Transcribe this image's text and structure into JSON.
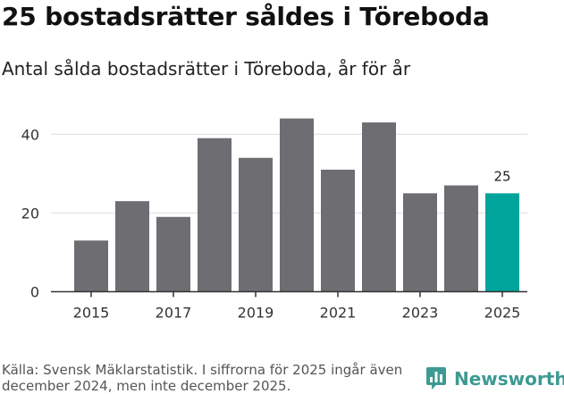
{
  "header": {
    "title": "25 bostadsrätter såldes i Töreboda",
    "subtitle": "Antal sålda bostadsrätter i Töreboda, år för år"
  },
  "footer": {
    "source": "Källa: Svensk Mäklarstatistik. I siffrorna för 2025 ingår även december 2024, men inte december 2025.",
    "brand": "Newsworthy"
  },
  "colors": {
    "bar": "#6e6d72",
    "highlight": "#00a49a",
    "axis": "#333333",
    "grid": "#dddddd",
    "brand": "#3d9a92"
  },
  "icons": {
    "brand": "bar-chart-pin-icon"
  },
  "chart_data": {
    "type": "bar",
    "title": "Antal sålda bostadsrätter i Töreboda, år för år",
    "categories": [
      "2015",
      "2016",
      "2017",
      "2018",
      "2019",
      "2020",
      "2021",
      "2022",
      "2023",
      "2024",
      "2025"
    ],
    "values": [
      13,
      23,
      19,
      39,
      34,
      44,
      31,
      43,
      25,
      27,
      25
    ],
    "highlight_category": "2025",
    "data_labels": [
      {
        "category": "2025",
        "text": "25"
      }
    ],
    "x_tick_labels": [
      "2015",
      "2017",
      "2019",
      "2021",
      "2023",
      "2025"
    ],
    "y_ticks": [
      0,
      20,
      40
    ],
    "ylim": [
      0,
      48
    ],
    "xlabel": "",
    "ylabel": "",
    "grid": true,
    "legend": "none"
  }
}
